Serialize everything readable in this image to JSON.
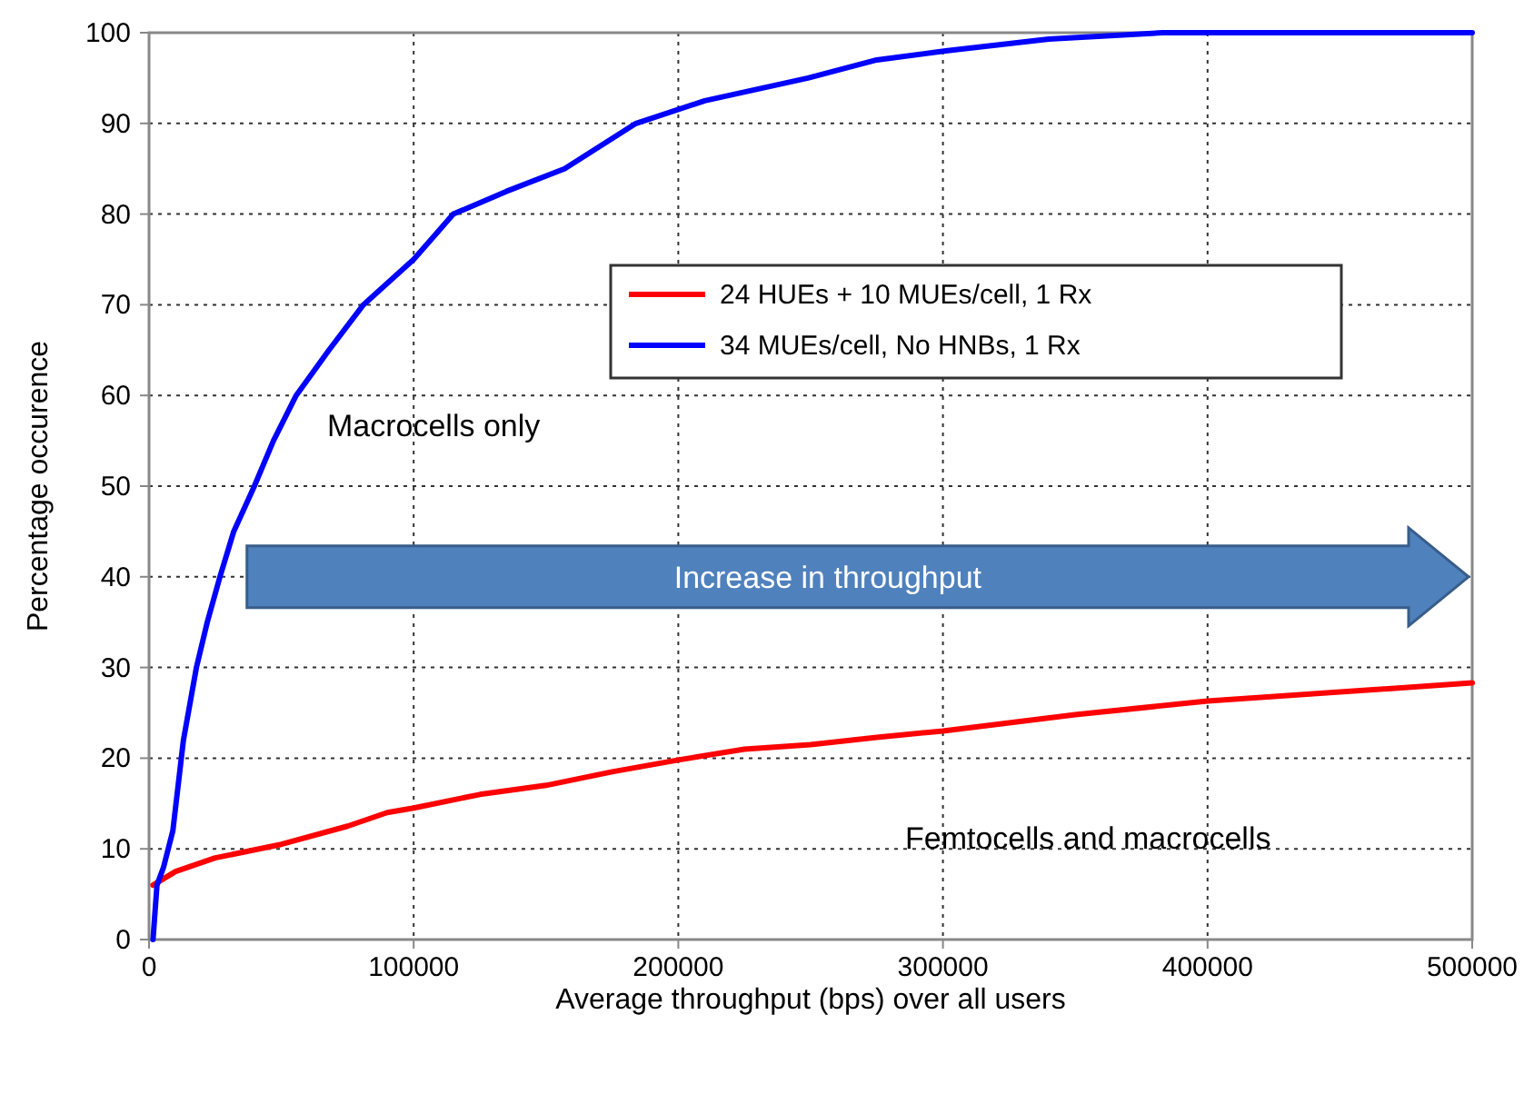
{
  "chart_data": {
    "type": "line",
    "xlabel": "Average throughput (bps) over all users",
    "ylabel": "Percentage occurence",
    "xlim": [
      0,
      500000
    ],
    "ylim": [
      0,
      100
    ],
    "xticks": [
      0,
      100000,
      200000,
      300000,
      400000,
      500000
    ],
    "yticks": [
      0,
      10,
      20,
      30,
      40,
      50,
      60,
      70,
      80,
      90,
      100
    ],
    "grid": true,
    "legend": "top right",
    "line_style": "solid",
    "marker": "none",
    "series": [
      {
        "name": "24 HUEs + 10 MUEs/cell, 1 Rx",
        "color": "#ff0000",
        "x": [
          1500,
          10000,
          25000,
          50000,
          75000,
          90000,
          100000,
          125000,
          150000,
          175000,
          200000,
          225000,
          250000,
          275000,
          300000,
          350000,
          400000,
          450000,
          500000
        ],
        "values": [
          6,
          7.5,
          9,
          10.5,
          12.5,
          14,
          14.5,
          16,
          17,
          18.5,
          19.8,
          21,
          21.5,
          22.3,
          23,
          24.8,
          26.3,
          27.3,
          28.3
        ]
      },
      {
        "name": "34 MUEs/cell, No HNBs, 1 Rx",
        "color": "#0000ff",
        "x": [
          1500,
          3000,
          5500,
          9000,
          13000,
          17900,
          22000,
          26800,
          32000,
          39800,
          47000,
          55600,
          68000,
          81000,
          100000,
          115000,
          135000,
          157000,
          184000,
          210000,
          249000,
          275000,
          301000,
          340000,
          383000,
          420000,
          500000
        ],
        "values": [
          0,
          6,
          8,
          12,
          22,
          30,
          35,
          40,
          45,
          50,
          55,
          60,
          65,
          70,
          75,
          80,
          82.5,
          85,
          90,
          92.5,
          95,
          97,
          98,
          99.3,
          100,
          100,
          100
        ]
      }
    ],
    "annotations": [
      "Macrocells only",
      "Femtocells and macrocells",
      "Increase in throughput"
    ]
  }
}
